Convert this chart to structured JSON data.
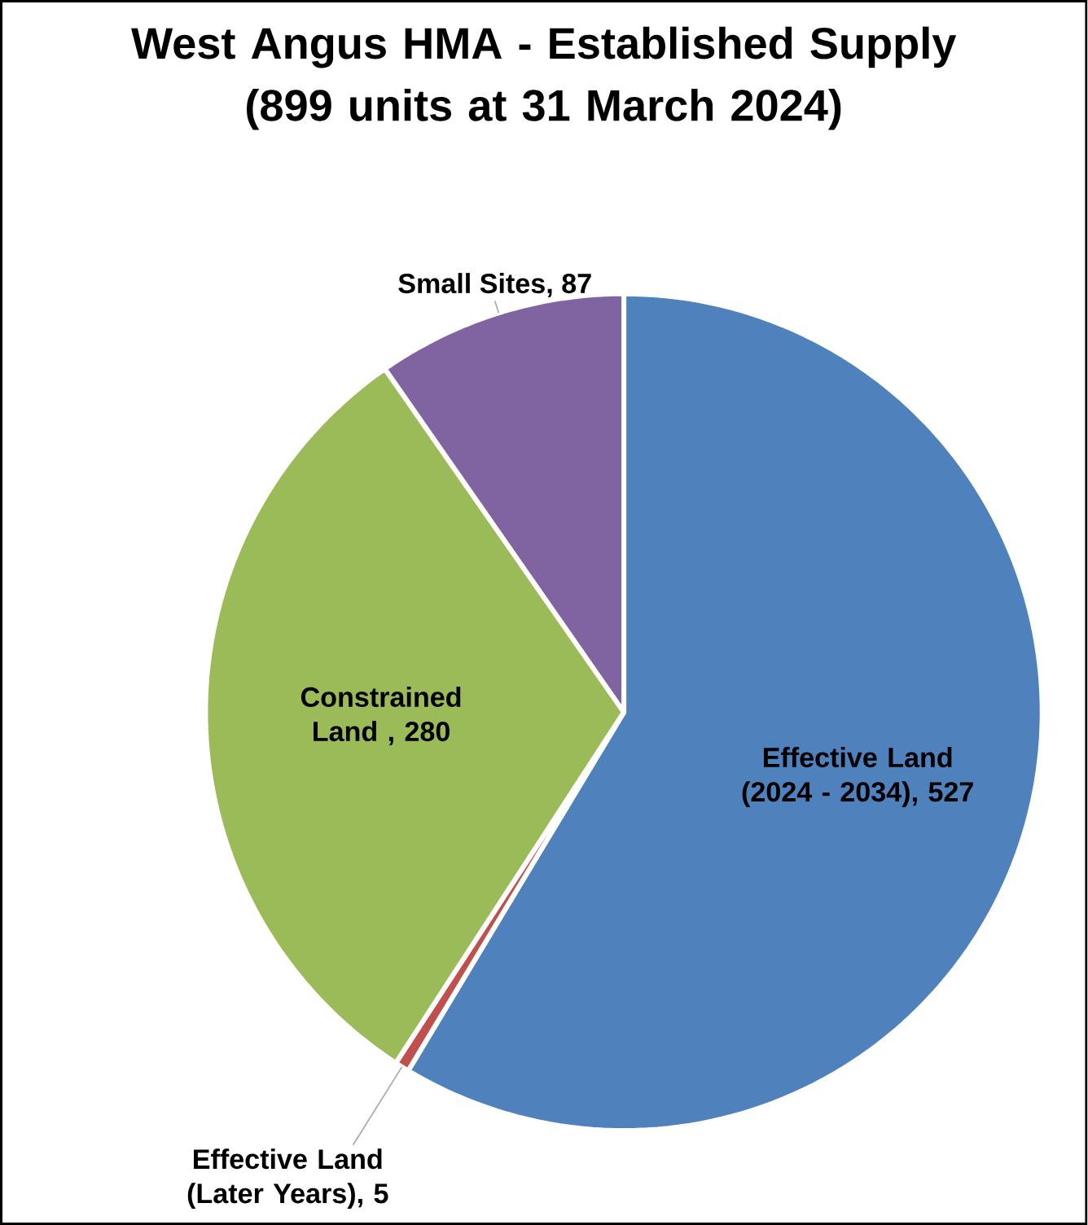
{
  "chart_data": {
    "type": "pie",
    "title": "West Angus HMA - Established Supply\n(899 units at 31 March 2024)",
    "categories": [
      "Effective Land (2024 - 2034)",
      "Effective Land (Later Years)",
      "Constrained Land ",
      "Small Sites"
    ],
    "values": [
      527,
      5,
      280,
      87
    ],
    "value_labels": [
      ", 527",
      ", 5",
      ", 280",
      ", 87"
    ],
    "colors": [
      "#4f81bd",
      "#c0504d",
      "#9bbb59",
      "#8064a2"
    ]
  }
}
